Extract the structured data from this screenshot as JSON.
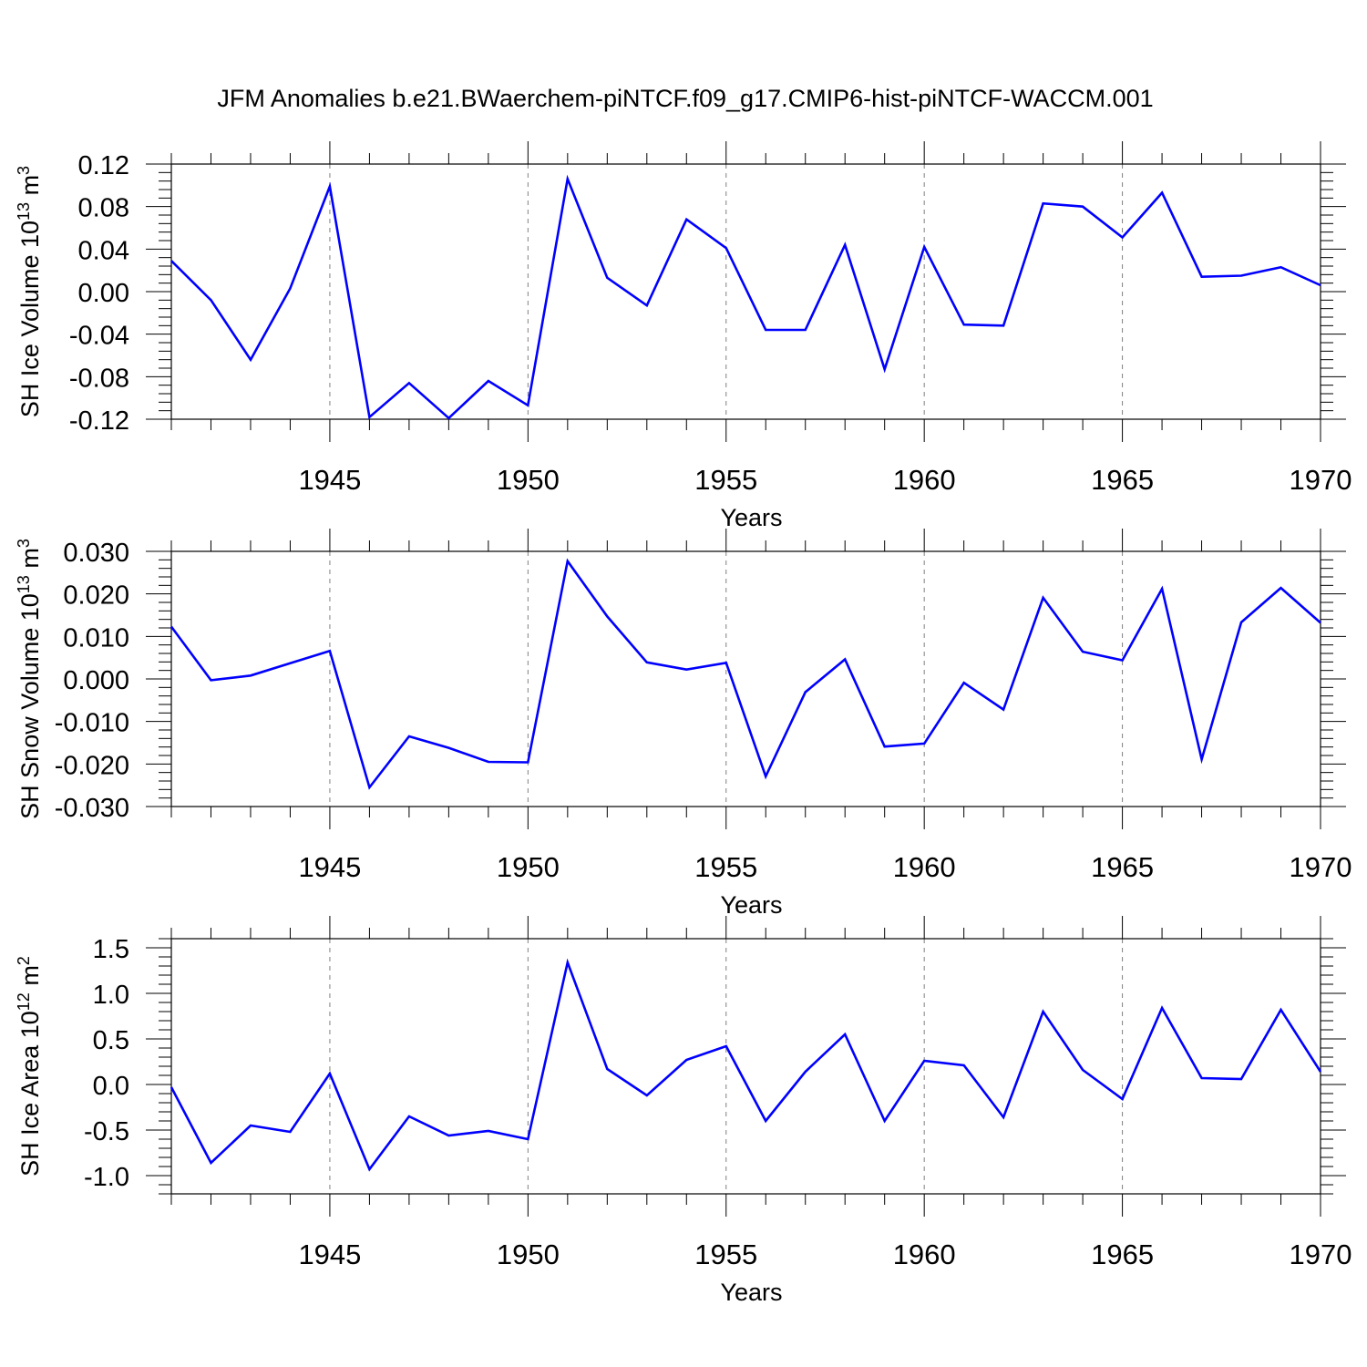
{
  "title": "JFM Anomalies b.e21.BWaerchem-piNTCF.f09_g17.CMIP6-hist-piNTCF-WACCM.001",
  "colors": {
    "series": "#0000ff",
    "axis": "#000000",
    "grid": "#808080"
  },
  "years": [
    1941,
    1942,
    1943,
    1944,
    1945,
    1946,
    1947,
    1948,
    1949,
    1950,
    1951,
    1952,
    1953,
    1954,
    1955,
    1956,
    1957,
    1958,
    1959,
    1960,
    1961,
    1962,
    1963,
    1964,
    1965,
    1966,
    1967,
    1968,
    1969,
    1970
  ],
  "chart_data": [
    {
      "type": "line",
      "title": "JFM Anomalies b.e21.BWaerchem-piNTCF.f09_g17.CMIP6-hist-piNTCF-WACCM.001",
      "xlabel": "Years",
      "ylabel_main": "SH Ice Volume 10",
      "ylabel_exp": "13",
      "ylabel_unit": " m",
      "ylabel_unit_exp": "3",
      "xlim": [
        1941,
        1970
      ],
      "ylim": [
        -0.12,
        0.12
      ],
      "yticks": [
        -0.12,
        -0.08,
        -0.04,
        0.0,
        0.04,
        0.08,
        0.12
      ],
      "ytick_labels": [
        "-0.12",
        "-0.08",
        "-0.04",
        "0.00",
        "0.04",
        "0.08",
        "0.12"
      ],
      "xticks": [
        1945,
        1950,
        1955,
        1960,
        1965,
        1970
      ],
      "xtick_labels": [
        "1945",
        "1950",
        "1955",
        "1960",
        "1965",
        "1970"
      ],
      "grid_x": [
        1945,
        1950,
        1955,
        1960,
        1965
      ],
      "values": [
        0.029,
        -0.008,
        -0.064,
        0.003,
        0.099,
        -0.118,
        -0.086,
        -0.119,
        -0.084,
        -0.107,
        0.106,
        0.013,
        -0.013,
        0.068,
        0.041,
        -0.036,
        -0.036,
        0.044,
        -0.073,
        0.042,
        -0.031,
        -0.032,
        0.083,
        0.08,
        0.051,
        0.093,
        0.014,
        0.015,
        0.023,
        0.006
      ]
    },
    {
      "type": "line",
      "title": "",
      "xlabel": "Years",
      "ylabel_main": "SH Snow Volume 10",
      "ylabel_exp": "13",
      "ylabel_unit": " m",
      "ylabel_unit_exp": "3",
      "xlim": [
        1941,
        1970
      ],
      "ylim": [
        -0.03,
        0.03
      ],
      "yticks": [
        -0.03,
        -0.02,
        -0.01,
        0.0,
        0.01,
        0.02,
        0.03
      ],
      "ytick_labels": [
        "-0.030",
        "-0.020",
        "-0.010",
        "0.000",
        "0.010",
        "0.020",
        "0.030"
      ],
      "xticks": [
        1945,
        1950,
        1955,
        1960,
        1965,
        1970
      ],
      "xtick_labels": [
        "1945",
        "1950",
        "1955",
        "1960",
        "1965",
        "1970"
      ],
      "grid_x": [
        1945,
        1950,
        1955,
        1960,
        1965
      ],
      "values": [
        0.0123,
        -0.0003,
        0.0008,
        0.0037,
        0.0066,
        -0.0255,
        -0.0135,
        -0.0162,
        -0.0195,
        -0.0196,
        0.0277,
        0.0147,
        0.0039,
        0.0022,
        0.0038,
        -0.0229,
        -0.0031,
        0.0046,
        -0.0159,
        -0.0152,
        -0.0009,
        -0.0072,
        0.0191,
        0.0064,
        0.0044,
        0.0212,
        -0.0189,
        0.0133,
        0.0214,
        0.0132
      ]
    },
    {
      "type": "line",
      "title": "",
      "xlabel": "Years",
      "ylabel_main": "SH Ice Area 10",
      "ylabel_exp": "12",
      "ylabel_unit": " m",
      "ylabel_unit_exp": "2",
      "xlim": [
        1941,
        1970
      ],
      "ylim": [
        -1.2,
        1.6
      ],
      "yticks": [
        -1.0,
        -0.5,
        0.0,
        0.5,
        1.0,
        1.5
      ],
      "ytick_labels": [
        "-1.0",
        "-0.5",
        "0.0",
        "0.5",
        "1.0",
        "1.5"
      ],
      "xticks": [
        1945,
        1950,
        1955,
        1960,
        1965,
        1970
      ],
      "xtick_labels": [
        "1945",
        "1950",
        "1955",
        "1960",
        "1965",
        "1970"
      ],
      "grid_x": [
        1945,
        1950,
        1955,
        1960,
        1965
      ],
      "values": [
        -0.03,
        -0.86,
        -0.45,
        -0.52,
        0.12,
        -0.93,
        -0.35,
        -0.56,
        -0.51,
        -0.6,
        1.34,
        0.17,
        -0.12,
        0.27,
        0.42,
        -0.4,
        0.14,
        0.55,
        -0.4,
        0.26,
        0.21,
        -0.36,
        0.8,
        0.16,
        -0.16,
        0.84,
        0.07,
        0.06,
        0.82,
        0.14
      ]
    }
  ]
}
